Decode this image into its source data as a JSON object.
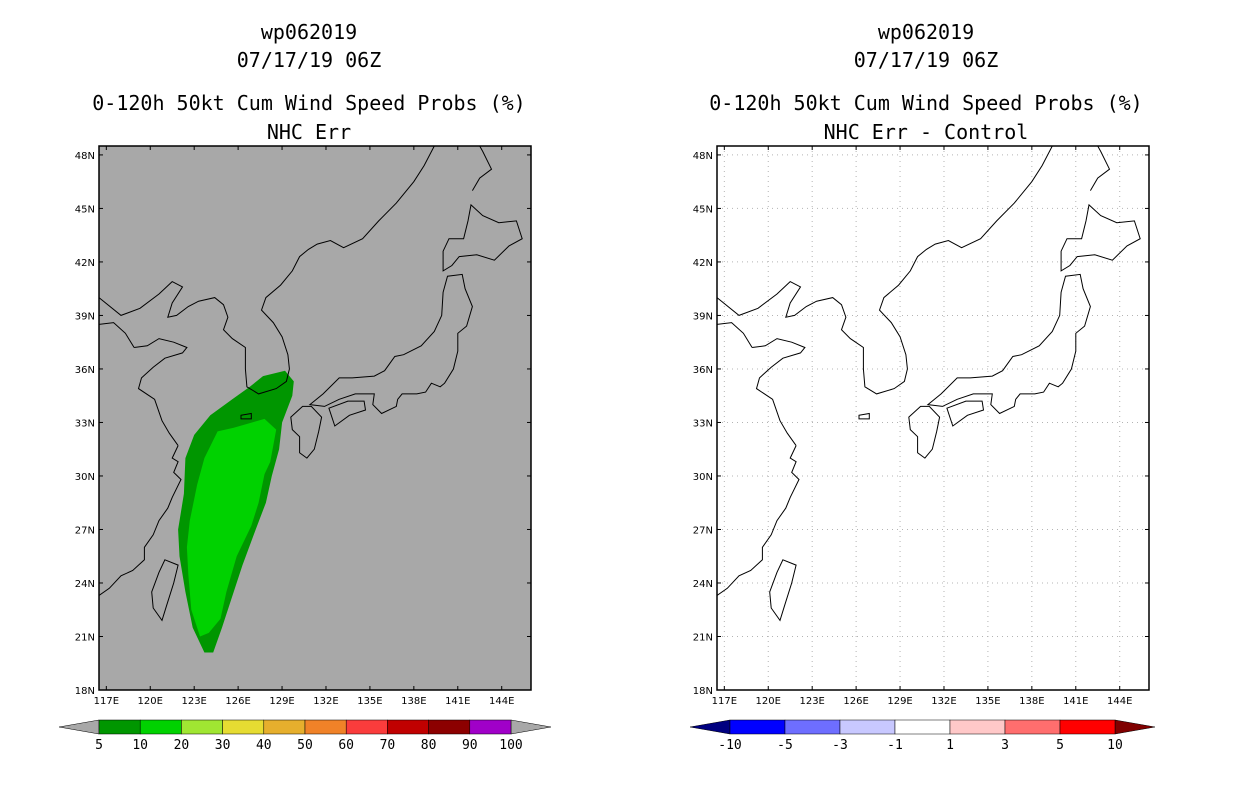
{
  "left_panel": {
    "storm_id": "wp062019",
    "datetime": "07/17/19 06Z",
    "product": "0-120h 50kt Cum Wind Speed Probs (%)",
    "subtitle": "NHC Err",
    "background_color": "#a8a8a8",
    "colorbar": {
      "labels": [
        "5",
        "10",
        "20",
        "30",
        "40",
        "50",
        "60",
        "70",
        "80",
        "90",
        "100"
      ],
      "colors": [
        "#009600",
        "#00d200",
        "#a0e632",
        "#e6dc32",
        "#e6af2d",
        "#f08228",
        "#fa3c3c",
        "#c00000",
        "#8c0000",
        "#a000c8"
      ]
    }
  },
  "right_panel": {
    "storm_id": "wp062019",
    "datetime": "07/17/19 06Z",
    "product": "0-120h 50kt Cum Wind Speed Probs (%)",
    "subtitle": "NHC Err - Control",
    "background_color": "#ffffff",
    "colorbar": {
      "labels": [
        "-10",
        "-5",
        "-3",
        "-1",
        "1",
        "3",
        "5",
        "10"
      ],
      "colors": [
        "#000080",
        "#0000ff",
        "#6e6eff",
        "#c8c8ff",
        "#ffffff",
        "#ffc8c8",
        "#ff6e6e",
        "#ff0000",
        "#800000"
      ]
    }
  },
  "axes": {
    "lat_labels": [
      "48N",
      "45N",
      "42N",
      "39N",
      "36N",
      "33N",
      "30N",
      "27N",
      "24N",
      "21N",
      "18N"
    ],
    "lon_labels": [
      "117E",
      "120E",
      "123E",
      "126E",
      "129E",
      "132E",
      "135E",
      "138E",
      "141E",
      "144E"
    ]
  },
  "map_data": {
    "extent": {
      "lon": [
        116.5,
        146.0
      ],
      "lat": [
        18.0,
        48.5
      ]
    },
    "prob_5_region": [
      [
        127.7,
        35.6
      ],
      [
        129.2,
        35.9
      ],
      [
        129.8,
        35.3
      ],
      [
        129.7,
        34.5
      ],
      [
        129.0,
        33.0
      ],
      [
        128.8,
        31.5
      ],
      [
        128.3,
        30.0
      ],
      [
        127.9,
        28.5
      ],
      [
        127.2,
        27.0
      ],
      [
        126.3,
        25.0
      ],
      [
        125.5,
        23.0
      ],
      [
        124.9,
        21.5
      ],
      [
        124.3,
        20.1
      ],
      [
        123.7,
        20.1
      ],
      [
        122.9,
        21.5
      ],
      [
        122.4,
        23.5
      ],
      [
        122.0,
        25.5
      ],
      [
        121.9,
        27.0
      ],
      [
        122.3,
        29.0
      ],
      [
        122.4,
        31.0
      ],
      [
        123.0,
        32.3
      ],
      [
        124.1,
        33.4
      ],
      [
        125.6,
        34.3
      ],
      [
        126.8,
        35.0
      ]
    ],
    "prob_10_region": [
      [
        125.7,
        32.7
      ],
      [
        127.8,
        33.2
      ],
      [
        128.6,
        32.6
      ],
      [
        128.2,
        30.8
      ],
      [
        127.8,
        30.1
      ],
      [
        127.4,
        28.5
      ],
      [
        126.9,
        27.2
      ],
      [
        125.9,
        25.5
      ],
      [
        125.2,
        23.5
      ],
      [
        124.8,
        22.0
      ],
      [
        124.0,
        21.2
      ],
      [
        123.4,
        21.0
      ],
      [
        122.8,
        22.5
      ],
      [
        122.6,
        24.5
      ],
      [
        122.5,
        26.0
      ],
      [
        122.7,
        27.5
      ],
      [
        123.2,
        29.5
      ],
      [
        123.7,
        31.0
      ],
      [
        124.6,
        32.5
      ]
    ]
  }
}
